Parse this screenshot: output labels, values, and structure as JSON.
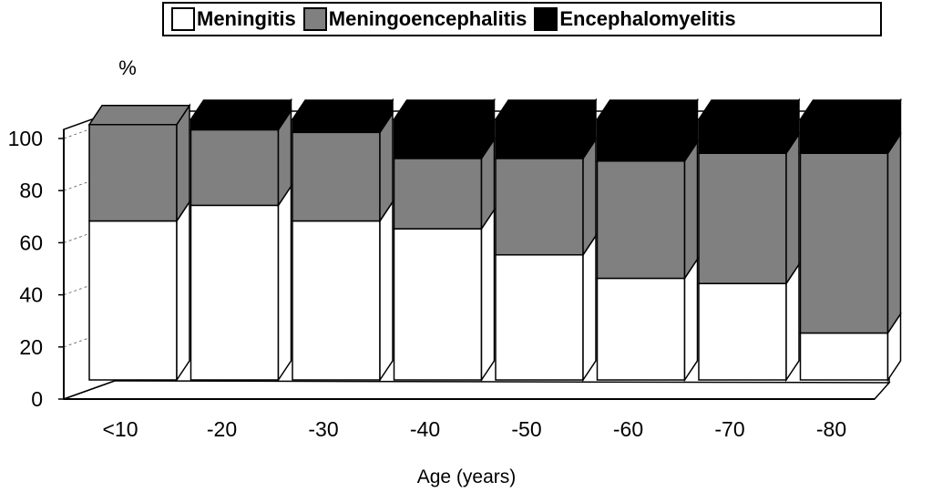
{
  "chart_data": {
    "type": "bar",
    "stacked": true,
    "three_d": true,
    "title": "",
    "xlabel": "Age (years)",
    "ylabel": "%",
    "ylim": [
      0,
      100
    ],
    "yticks": [
      0,
      20,
      40,
      60,
      80,
      100
    ],
    "categories": [
      "<10",
      "-20",
      "-30",
      "-40",
      "-50",
      "-60",
      "-70",
      "-80"
    ],
    "series": [
      {
        "name": "Meningitis",
        "color": "#ffffff",
        "values": [
          61,
          67,
          61,
          58,
          48,
          39,
          37,
          18
        ]
      },
      {
        "name": "Meningoencephalitis",
        "color": "#808080",
        "values": [
          37,
          29,
          34,
          27,
          37,
          45,
          50,
          69
        ]
      },
      {
        "name": "Encephalomyelitis",
        "color": "#000000",
        "values": [
          0,
          4,
          5,
          15,
          15,
          16,
          13,
          13
        ]
      }
    ],
    "legend_position": "top"
  }
}
